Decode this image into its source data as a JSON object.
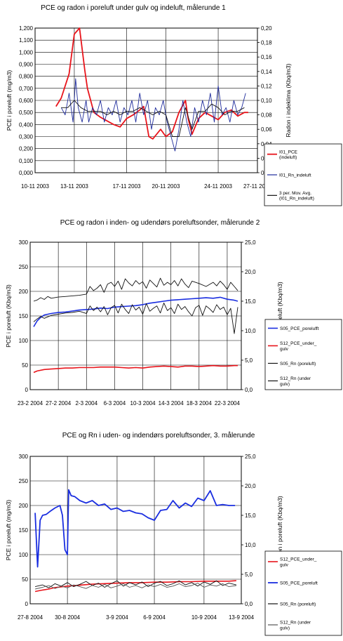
{
  "chart_data": [
    {
      "type": "line",
      "title": "PCE og radon i poreluft under gulv og indeluft, målerunde 1",
      "ylabel": "PCE i poreluft (mg/m3)",
      "y2label": "Radon i indeklima (Kbq/m3)",
      "ylim": [
        0,
        1.2
      ],
      "y2lim": [
        0,
        0.2
      ],
      "yticks": [
        "0,000",
        "0,100",
        "0,200",
        "0,300",
        "0,400",
        "0,500",
        "0,600",
        "0,700",
        "0,800",
        "0,900",
        "1,000",
        "1,100",
        "1,200"
      ],
      "y2ticks": [
        "0,00",
        "0,02",
        "0,04",
        "0,06",
        "0,08",
        "0,10",
        "0,12",
        "0,14",
        "0,16",
        "0,18",
        "0,20"
      ],
      "xticks": [
        "10-11 2003",
        "13-11 2003",
        "17-11 2003",
        "20-11 2003",
        "24-11 2003",
        "27-11 2003"
      ],
      "xlim": [
        0,
        17
      ],
      "xtick_pos": [
        0,
        3,
        7,
        10,
        14,
        17
      ],
      "grid": true,
      "legend": "right",
      "series": [
        {
          "name": "I01_PCE (indeluft)",
          "axis": "left",
          "color": "#e8141b",
          "width": 1.8,
          "dash": "",
          "x": [
            1.6,
            2.0,
            2.6,
            3.0,
            3.4,
            3.8,
            4.0,
            4.5,
            5.0,
            5.5,
            6.0,
            6.5,
            7.0,
            7.5,
            8.0,
            8.3,
            8.7,
            9.0,
            9.3,
            9.6,
            10.0,
            10.5,
            11.0,
            11.5,
            11.7,
            12.0,
            12.5,
            13.0,
            13.5,
            14.0,
            14.5,
            15.0,
            15.5,
            16.0,
            16.3
          ],
          "values": [
            0.55,
            0.62,
            0.82,
            1.15,
            1.2,
            0.85,
            0.7,
            0.5,
            0.46,
            0.43,
            0.4,
            0.38,
            0.45,
            0.48,
            0.52,
            0.55,
            0.3,
            0.28,
            0.32,
            0.36,
            0.3,
            0.34,
            0.5,
            0.6,
            0.45,
            0.32,
            0.45,
            0.5,
            0.47,
            0.44,
            0.5,
            0.52,
            0.47,
            0.5,
            0.5
          ]
        },
        {
          "name": "I01_Rn_indeluft",
          "axis": "right",
          "color": "#1f2c9c",
          "width": 0.9,
          "dash": "",
          "x": [
            2.0,
            2.3,
            2.6,
            2.9,
            3.1,
            3.3,
            3.6,
            3.9,
            4.1,
            4.4,
            4.7,
            5.0,
            5.3,
            5.6,
            5.9,
            6.2,
            6.5,
            6.8,
            7.1,
            7.4,
            7.7,
            8.0,
            8.3,
            8.6,
            8.9,
            9.2,
            9.5,
            9.8,
            10.1,
            10.4,
            10.7,
            11.0,
            11.3,
            11.6,
            11.9,
            12.2,
            12.5,
            12.8,
            13.1,
            13.4,
            13.7,
            14.0,
            14.3,
            14.6,
            14.9,
            15.2,
            15.5,
            15.8,
            16.1
          ],
          "values": [
            0.09,
            0.08,
            0.11,
            0.07,
            0.13,
            0.09,
            0.07,
            0.1,
            0.07,
            0.09,
            0.08,
            0.1,
            0.07,
            0.09,
            0.08,
            0.1,
            0.07,
            0.09,
            0.08,
            0.1,
            0.07,
            0.11,
            0.08,
            0.1,
            0.06,
            0.09,
            0.08,
            0.1,
            0.07,
            0.05,
            0.03,
            0.06,
            0.1,
            0.07,
            0.05,
            0.09,
            0.07,
            0.1,
            0.08,
            0.11,
            0.07,
            0.12,
            0.08,
            0.09,
            0.07,
            0.1,
            0.08,
            0.09,
            0.11
          ]
        },
        {
          "name": "3 per. Mov. Avg. (I01_Rn_indeluft)",
          "axis": "right",
          "color": "#111111",
          "width": 0.9,
          "dash": "",
          "x": [
            2.0,
            2.5,
            3.0,
            3.5,
            4.0,
            4.5,
            5.0,
            5.5,
            6.0,
            6.5,
            7.0,
            7.5,
            8.0,
            8.5,
            9.0,
            9.5,
            10.0,
            10.5,
            11.0,
            11.5,
            12.0,
            12.5,
            13.0,
            13.5,
            14.0,
            14.5,
            15.0,
            15.5,
            16.0
          ],
          "values": [
            0.09,
            0.09,
            0.1,
            0.09,
            0.085,
            0.085,
            0.085,
            0.08,
            0.085,
            0.08,
            0.085,
            0.085,
            0.09,
            0.085,
            0.08,
            0.085,
            0.08,
            0.05,
            0.05,
            0.09,
            0.06,
            0.085,
            0.085,
            0.095,
            0.09,
            0.08,
            0.085,
            0.085,
            0.09
          ]
        }
      ]
    },
    {
      "type": "line",
      "title": "PCE og radon i inden- og udendørs poreluftsonder, målerunde 2",
      "ylabel": "PCE i poreluft (Kbq/m3)",
      "y2label": "Radon i poreluft (Kbq/m3)",
      "ylim": [
        0,
        300
      ],
      "y2lim": [
        0,
        25
      ],
      "yticks": [
        "0",
        "50",
        "100",
        "150",
        "200",
        "250",
        "300"
      ],
      "y2ticks": [
        "0,0",
        "5,0",
        "10,0",
        "15,0",
        "20,0",
        "25,0"
      ],
      "xticks": [
        "23-2 2004",
        "27-2 2004",
        "2-3 2004",
        "6-3 2004",
        "10-3 2004",
        "14-3 2004",
        "18-3 2004",
        "22-3 2004"
      ],
      "xlim": [
        0,
        30
      ],
      "xtick_pos": [
        0,
        4,
        8,
        12,
        16,
        20,
        24,
        28
      ],
      "grid": true,
      "legend": "right",
      "series": [
        {
          "name": "S05_PCE_porelufft",
          "axis": "left",
          "color": "#1a2ee0",
          "width": 1.6,
          "dash": "",
          "x": [
            0.5,
            1.0,
            1.5,
            2.0,
            3.0,
            4.0,
            5.0,
            6.0,
            7.0,
            8.0,
            9.0,
            10.0,
            11.0,
            12.0,
            13.0,
            14.0,
            15.0,
            16.0,
            17.0,
            18.0,
            19.0,
            20.0,
            21.0,
            22.0,
            23.0,
            24.0,
            25.0,
            26.0,
            27.0,
            28.0,
            29.0,
            29.5
          ],
          "values": [
            128,
            140,
            147,
            152,
            155,
            157,
            158,
            160,
            162,
            163,
            164,
            166,
            165,
            168,
            169,
            170,
            171,
            173,
            176,
            178,
            180,
            182,
            183,
            184,
            185,
            186,
            187,
            186,
            188,
            184,
            182,
            180
          ]
        },
        {
          "name": "S12_PCE_under_gulv",
          "axis": "left",
          "color": "#e8141b",
          "width": 1.6,
          "dash": "",
          "x": [
            0.5,
            1.0,
            2.0,
            3.0,
            4.0,
            5.0,
            6.0,
            7.0,
            8.0,
            9.0,
            10.0,
            11.0,
            12.0,
            13.0,
            14.0,
            15.0,
            16.0,
            17.0,
            18.0,
            19.0,
            20.0,
            21.0,
            22.0,
            23.0,
            24.0,
            25.0,
            26.0,
            27.0,
            28.0,
            29.0,
            29.5
          ],
          "values": [
            35,
            38,
            41,
            42,
            43,
            44,
            44,
            45,
            45,
            45,
            46,
            46,
            46,
            45,
            44,
            45,
            44,
            46,
            47,
            48,
            47,
            46,
            48,
            48,
            47,
            48,
            49,
            48,
            48,
            49,
            49
          ]
        },
        {
          "name": "S05_Rn (poreluft)",
          "axis": "right",
          "color": "#111111",
          "width": 0.9,
          "dash": "",
          "x": [
            0.5,
            1.0,
            1.5,
            2.0,
            2.5,
            3.0,
            4.0,
            5.0,
            6.0,
            7.0,
            8.0,
            8.5,
            9.0,
            9.5,
            10.0,
            10.5,
            11.0,
            11.5,
            12.0,
            12.5,
            13.0,
            13.5,
            14.0,
            14.5,
            15.0,
            15.5,
            16.0,
            16.5,
            17.0,
            17.5,
            18.0,
            18.5,
            19.0,
            19.5,
            20.0,
            20.5,
            21.0,
            21.5,
            22.0,
            22.5,
            23.0,
            24.0,
            25.0,
            26.0,
            26.5,
            27.0,
            27.5,
            28.0,
            28.5,
            29.0,
            29.5
          ],
          "values": [
            15.0,
            15.2,
            15.6,
            15.3,
            15.8,
            15.5,
            15.7,
            15.8,
            15.9,
            16.0,
            16.2,
            17.5,
            16.8,
            17.2,
            17.8,
            16.5,
            17.9,
            18.2,
            17.5,
            18.4,
            17.0,
            18.8,
            18.1,
            17.6,
            18.5,
            17.9,
            18.3,
            17.2,
            18.6,
            18.0,
            17.4,
            18.9,
            17.7,
            18.2,
            17.8,
            18.5,
            17.6,
            18.8,
            17.9,
            17.3,
            18.4,
            18.0,
            17.5,
            18.2,
            17.6,
            18.4,
            17.8,
            17.0,
            18.2,
            17.5,
            16.8
          ]
        },
        {
          "name": "S12_Rn (under gulv)",
          "axis": "right",
          "color": "#111111",
          "width": 0.9,
          "dash": "",
          "x": [
            0.5,
            1.0,
            1.5,
            2.0,
            3.0,
            4.0,
            5.0,
            6.0,
            7.0,
            8.0,
            8.5,
            9.0,
            9.5,
            10.0,
            10.5,
            11.0,
            11.5,
            12.0,
            12.5,
            13.0,
            13.5,
            14.0,
            14.5,
            15.0,
            15.5,
            16.0,
            16.5,
            17.0,
            17.5,
            18.0,
            18.5,
            19.0,
            19.5,
            20.0,
            20.5,
            21.0,
            21.5,
            22.0,
            22.5,
            23.0,
            23.5,
            24.0,
            24.5,
            25.0,
            25.5,
            26.0,
            26.5,
            27.0,
            27.5,
            28.0,
            28.5,
            29.0,
            29.5
          ],
          "values": [
            11.5,
            12.0,
            12.4,
            12.1,
            12.6,
            12.8,
            13.0,
            13.1,
            13.3,
            12.9,
            14.2,
            13.4,
            14.0,
            13.2,
            14.1,
            12.7,
            13.9,
            14.3,
            13.0,
            14.5,
            13.6,
            12.9,
            14.4,
            13.5,
            14.0,
            12.8,
            14.6,
            13.3,
            13.8,
            14.2,
            13.0,
            14.7,
            13.4,
            13.9,
            12.9,
            14.5,
            13.6,
            14.1,
            13.2,
            12.5,
            13.9,
            14.3,
            12.6,
            14.2,
            13.7,
            13.1,
            14.4,
            13.6,
            14.0,
            12.7,
            13.8,
            9.5,
            14.0
          ]
        }
      ]
    },
    {
      "type": "line",
      "title": "PCE og Rn i uden- og indendørs poreluftsonder, 3. målerunde",
      "ylabel": "PCE i poreluft (mg/m3)",
      "y2label": "Radon i poreluft (Kbq/m3)",
      "ylim": [
        0,
        300
      ],
      "y2lim": [
        0,
        25
      ],
      "yticks": [
        "0",
        "50",
        "100",
        "150",
        "200",
        "250",
        "300"
      ],
      "y2ticks": [
        "0,0",
        "5,0",
        "10,0",
        "15,0",
        "20,0",
        "25,0"
      ],
      "xticks": [
        "27-8 2004",
        "30-8 2004",
        "3-9 2004",
        "6-9 2004",
        "10-9 2004",
        "13-9 2004"
      ],
      "xlim": [
        0,
        17
      ],
      "xtick_pos": [
        0,
        3,
        7,
        10,
        14,
        17
      ],
      "grid": true,
      "legend": "right",
      "series": [
        {
          "name": "S12_PCE_under_gulv",
          "axis": "left",
          "color": "#e8141b",
          "width": 1.6,
          "dash": "",
          "x": [
            0.4,
            1.0,
            1.5,
            2.0,
            3.0,
            4.0,
            5.0,
            6.0,
            7.0,
            8.0,
            9.0,
            10.0,
            11.0,
            12.0,
            13.0,
            14.0,
            15.0,
            16.0,
            16.6
          ],
          "values": [
            25,
            28,
            30,
            33,
            36,
            38,
            40,
            41,
            42,
            43,
            43,
            44,
            44,
            45,
            45,
            46,
            46,
            46,
            47
          ]
        },
        {
          "name": "S05_PCE_porelufft",
          "axis": "left",
          "color": "#1a2ee0",
          "width": 1.8,
          "dash": "",
          "x": [
            0.4,
            0.6,
            0.8,
            1.0,
            1.3,
            1.6,
            2.0,
            2.4,
            2.6,
            2.8,
            3.0,
            3.1,
            3.3,
            3.6,
            4.0,
            4.5,
            5.0,
            5.5,
            6.0,
            6.5,
            7.0,
            7.5,
            8.0,
            8.5,
            9.0,
            9.5,
            10.0,
            10.5,
            11.0,
            11.5,
            12.0,
            12.5,
            13.0,
            13.5,
            14.0,
            14.5,
            15.0,
            15.5,
            16.0,
            16.5
          ],
          "values": [
            185,
            75,
            170,
            180,
            182,
            188,
            195,
            200,
            180,
            110,
            100,
            232,
            220,
            218,
            210,
            205,
            210,
            200,
            203,
            192,
            195,
            188,
            190,
            185,
            183,
            175,
            170,
            190,
            192,
            210,
            195,
            205,
            198,
            215,
            210,
            230,
            200,
            202,
            200,
            200
          ]
        },
        {
          "name": "S05_Rn (poreluft)",
          "axis": "right",
          "color": "#111111",
          "width": 0.9,
          "dash": "",
          "x": [
            0.4,
            1.0,
            1.5,
            2.0,
            2.5,
            3.0,
            3.5,
            4.0,
            4.5,
            5.0,
            5.5,
            6.0,
            6.5,
            7.0,
            7.5,
            8.0,
            8.5,
            9.0,
            9.5,
            10.0,
            10.5,
            11.0,
            11.5,
            12.0,
            12.5,
            13.0,
            13.5,
            14.0,
            14.5,
            15.0,
            15.5,
            16.0,
            16.6
          ],
          "values": [
            2.9,
            3.2,
            2.7,
            3.4,
            3.0,
            3.6,
            2.9,
            3.3,
            3.8,
            3.1,
            3.5,
            2.8,
            3.4,
            3.9,
            3.0,
            3.6,
            3.2,
            3.7,
            2.9,
            3.5,
            3.8,
            3.1,
            3.4,
            3.9,
            3.2,
            3.6,
            3.0,
            3.7,
            3.3,
            3.9,
            3.1,
            3.5,
            3.2
          ]
        },
        {
          "name": "S12_Rn (under gulv)",
          "axis": "right",
          "color": "#555555",
          "width": 0.9,
          "dash": "",
          "x": [
            0.4,
            1.0,
            1.5,
            2.0,
            2.5,
            3.0,
            3.5,
            4.0,
            4.5,
            5.0,
            5.5,
            6.0,
            6.5,
            7.0,
            7.5,
            8.0,
            8.5,
            9.0,
            9.5,
            10.0,
            10.5,
            11.0,
            11.5,
            12.0,
            12.5,
            13.0,
            13.5,
            14.0,
            14.5,
            15.0,
            15.5,
            16.0,
            16.6
          ],
          "values": [
            2.5,
            2.8,
            3.1,
            2.6,
            3.0,
            2.7,
            3.2,
            2.9,
            2.6,
            3.1,
            2.8,
            3.3,
            2.7,
            3.0,
            3.4,
            2.8,
            3.1,
            2.7,
            3.2,
            2.9,
            3.3,
            2.8,
            3.0,
            3.4,
            2.9,
            3.1,
            3.5,
            2.8,
            3.2,
            3.0,
            3.4,
            2.9,
            3.1
          ]
        }
      ]
    }
  ]
}
